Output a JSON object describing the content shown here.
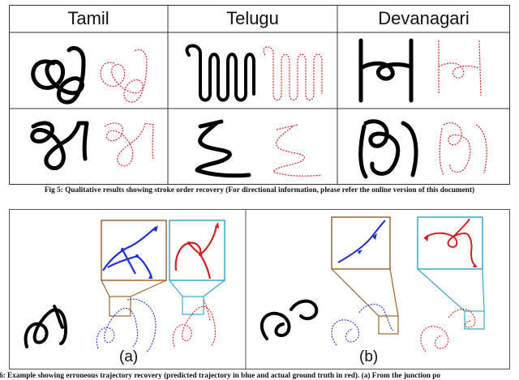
{
  "fig5": {
    "columns": [
      "Tamil",
      "Telugu",
      "Devanagari"
    ],
    "caption": "Fig 5: Qualitative results showing stroke order recovery (For directional information, please refer the online version of this document)"
  },
  "fig6": {
    "labels": [
      "(a)",
      "(b)"
    ],
    "caption": "g 6: Example showing erroneous trajectory recovery (predicted trajectory in blue and actual ground truth in red). (a) From the junction po"
  },
  "colors": {
    "ink": "#000000",
    "predicted": "#1f2fd6",
    "ground_truth": "#d42020",
    "box_brown": "#a0642a",
    "box_cyan": "#3aa7c9",
    "grid": "#333333"
  }
}
